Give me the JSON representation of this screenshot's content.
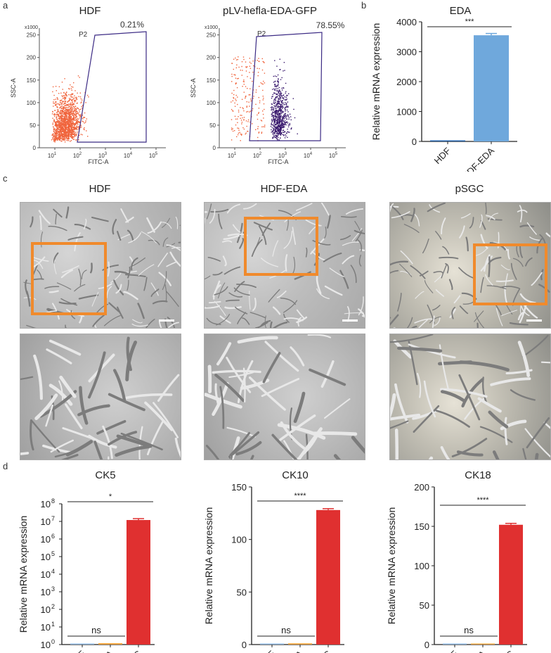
{
  "panel_labels": {
    "a": "a",
    "b": "b",
    "c": "c",
    "d": "d"
  },
  "flow": [
    {
      "title": "HDF",
      "gate": "P2",
      "percent": "0.21%",
      "y_axis": "SSC-A",
      "y_mult": "x1000",
      "x_axis": "FITC-A",
      "y_ticks": [
        "0",
        "50",
        "100",
        "150",
        "200",
        "250"
      ],
      "x_ticks": [
        {
          "b": "10",
          "e": "1"
        },
        {
          "b": "10",
          "e": "2"
        },
        {
          "b": "10",
          "e": "3"
        },
        {
          "b": "10",
          "e": "4"
        },
        {
          "b": "10",
          "e": "5"
        }
      ]
    },
    {
      "title": "pLV-hefla-EDA-GFP",
      "gate": "P2",
      "percent": "78.55%",
      "y_axis": "SSC-A",
      "y_mult": "x1000",
      "x_axis": "FITC-A",
      "y_ticks": [
        "0",
        "50",
        "100",
        "150",
        "200",
        "250"
      ],
      "x_ticks": [
        {
          "b": "10",
          "e": "1"
        },
        {
          "b": "10",
          "e": "2"
        },
        {
          "b": "10",
          "e": "3"
        },
        {
          "b": "10",
          "e": "4"
        },
        {
          "b": "10",
          "e": "5"
        }
      ]
    }
  ],
  "micro": {
    "titles": [
      "HDF",
      "HDF-EDA",
      "pSGC"
    ]
  },
  "chart_data": [
    {
      "type": "bar",
      "title": "EDA",
      "ylabel": "Relative mRNA expression",
      "categories": [
        "HDF",
        "HDF-EDA"
      ],
      "values": [
        1,
        3550
      ],
      "errors": [
        0,
        60
      ],
      "ylim": [
        0,
        4000
      ],
      "y_ticks": [
        0,
        1000,
        2000,
        3000,
        4000
      ],
      "colors": [
        "#1f5fa8",
        "#6fa8dc"
      ],
      "significance": [
        {
          "from": 0,
          "to": 1,
          "label": "***"
        }
      ]
    },
    {
      "type": "bar",
      "title": "CK5",
      "ylabel": "Relative mRNA expression",
      "yscale": "log",
      "categories": [
        "HDF",
        "HDF-EDA",
        "pSGC"
      ],
      "values": [
        1,
        1.2,
        12000000
      ],
      "ylim": [
        1,
        100000000
      ],
      "y_ticks_exp": [
        "0",
        "1",
        "2",
        "3",
        "4",
        "5",
        "6",
        "7",
        "8"
      ],
      "colors": [
        "#8fb8e0",
        "#f5a742",
        "#e03030"
      ],
      "significance": [
        {
          "from": 0,
          "to": 1,
          "label": "ns"
        },
        {
          "from": 0,
          "to": 2,
          "label": "*"
        }
      ]
    },
    {
      "type": "bar",
      "title": "CK10",
      "ylabel": "Relative mRNA expression",
      "categories": [
        "HDF",
        "HDF-EDA",
        "pSGC"
      ],
      "values": [
        1,
        1.2,
        128
      ],
      "ylim": [
        0,
        150
      ],
      "y_ticks": [
        0,
        50,
        100,
        150
      ],
      "colors": [
        "#8fb8e0",
        "#f5a742",
        "#e03030"
      ],
      "significance": [
        {
          "from": 0,
          "to": 1,
          "label": "ns"
        },
        {
          "from": 0,
          "to": 2,
          "label": "****"
        }
      ]
    },
    {
      "type": "bar",
      "title": "CK18",
      "ylabel": "Relative mRNA expression",
      "categories": [
        "HDF",
        "HDF-EDA",
        "pSGC"
      ],
      "values": [
        1,
        1.1,
        152
      ],
      "ylim": [
        0,
        200
      ],
      "y_ticks": [
        0,
        50,
        100,
        150,
        200
      ],
      "colors": [
        "#8fb8e0",
        "#f5a742",
        "#e03030"
      ],
      "significance": [
        {
          "from": 0,
          "to": 1,
          "label": "ns"
        },
        {
          "from": 0,
          "to": 2,
          "label": "****"
        }
      ]
    }
  ]
}
